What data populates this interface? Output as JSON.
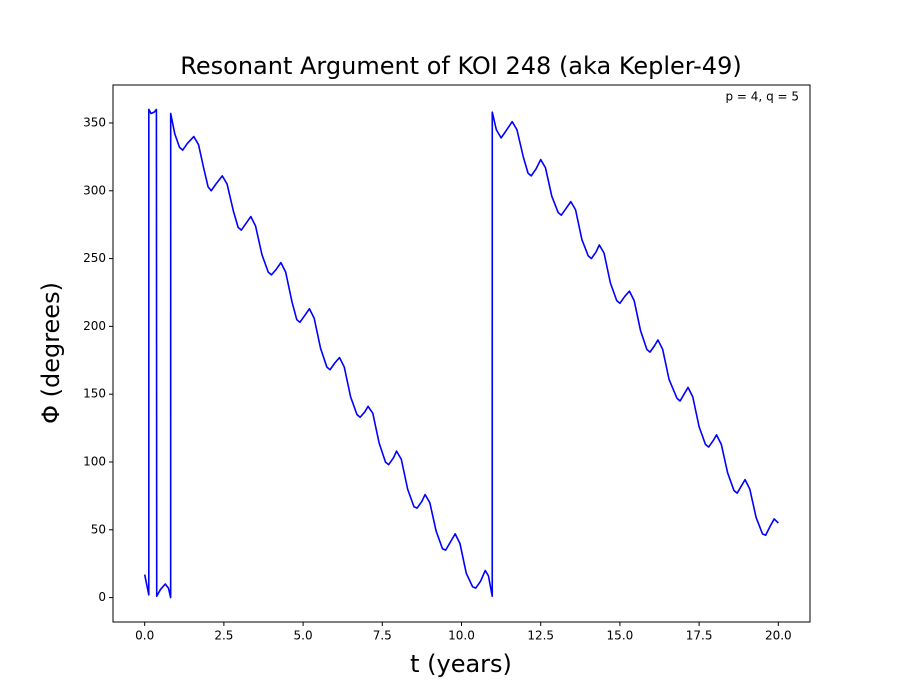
{
  "chart_data": {
    "type": "line",
    "title": "Resonant Argument of KOI 248 (aka Kepler-49)",
    "xlabel": "t (years)",
    "ylabel": "Φ (degrees)",
    "annotation": "p = 4, q = 5",
    "xlim": [
      -1,
      21
    ],
    "ylim": [
      -18,
      378
    ],
    "xticks": [
      {
        "value": 0,
        "label": "0.0"
      },
      2.5,
      {
        "value": 5,
        "label": "5.0"
      },
      7.5,
      {
        "value": 10,
        "label": "10.0"
      },
      12.5,
      {
        "value": 15,
        "label": "15.0"
      },
      17.5,
      {
        "value": 20,
        "label": "20.0"
      }
    ],
    "yticks": [
      0,
      50,
      100,
      150,
      200,
      250,
      300,
      350
    ],
    "x": [
      0.0,
      0.13,
      0.131,
      0.2,
      0.3,
      0.37,
      0.38,
      0.5,
      0.65,
      0.75,
      0.82,
      0.821,
      0.95,
      1.1,
      1.2,
      1.35,
      1.55,
      1.7,
      1.85,
      2.0,
      2.1,
      2.25,
      2.45,
      2.6,
      2.8,
      2.95,
      3.05,
      3.2,
      3.35,
      3.5,
      3.7,
      3.9,
      4.0,
      4.15,
      4.3,
      4.45,
      4.65,
      4.8,
      4.9,
      5.05,
      5.2,
      5.35,
      5.55,
      5.75,
      5.85,
      6.0,
      6.15,
      6.3,
      6.5,
      6.7,
      6.8,
      6.95,
      7.05,
      7.2,
      7.4,
      7.6,
      7.7,
      7.85,
      7.95,
      8.1,
      8.3,
      8.5,
      8.6,
      8.75,
      8.85,
      9.0,
      9.2,
      9.4,
      9.5,
      9.65,
      9.8,
      9.95,
      10.15,
      10.35,
      10.45,
      10.6,
      10.75,
      10.85,
      10.97,
      10.971,
      11.1,
      11.25,
      11.4,
      11.6,
      11.75,
      11.95,
      12.1,
      12.2,
      12.35,
      12.5,
      12.65,
      12.85,
      13.05,
      13.15,
      13.3,
      13.45,
      13.6,
      13.8,
      14.0,
      14.1,
      14.25,
      14.35,
      14.5,
      14.7,
      14.9,
      15.0,
      15.15,
      15.3,
      15.45,
      15.65,
      15.85,
      15.95,
      16.1,
      16.2,
      16.35,
      16.55,
      16.8,
      16.9,
      17.05,
      17.15,
      17.3,
      17.5,
      17.7,
      17.8,
      17.95,
      18.05,
      18.2,
      18.4,
      18.6,
      18.7,
      18.85,
      18.95,
      19.1,
      19.3,
      19.5,
      19.6,
      19.75,
      19.87,
      20.0
    ],
    "series": [
      {
        "color": "#0000ff",
        "values": [
          17,
          2,
          360,
          357,
          358,
          360,
          1,
          6,
          10,
          7,
          0,
          357,
          342,
          332,
          330,
          335,
          340,
          334,
          318,
          303,
          300,
          305,
          311,
          305,
          285,
          273,
          271,
          276,
          281,
          274,
          253,
          240,
          238,
          242,
          247,
          240,
          218,
          205,
          203,
          208,
          213,
          206,
          184,
          170,
          168,
          173,
          177,
          170,
          148,
          135,
          133,
          137,
          141,
          136,
          114,
          100,
          98,
          103,
          108,
          102,
          80,
          67,
          66,
          71,
          76,
          70,
          49,
          36,
          35,
          41,
          47,
          40,
          18,
          8,
          7,
          12,
          20,
          16,
          1,
          358,
          345,
          339,
          344,
          351,
          345,
          325,
          313,
          311,
          316,
          323,
          317,
          296,
          284,
          282,
          287,
          292,
          286,
          264,
          252,
          250,
          255,
          260,
          254,
          232,
          219,
          217,
          222,
          226,
          219,
          197,
          183,
          181,
          186,
          190,
          183,
          161,
          147,
          145,
          151,
          155,
          148,
          126,
          113,
          111,
          116,
          120,
          113,
          92,
          79,
          77,
          83,
          87,
          80,
          59,
          47,
          46,
          53,
          58,
          55
        ]
      }
    ]
  }
}
